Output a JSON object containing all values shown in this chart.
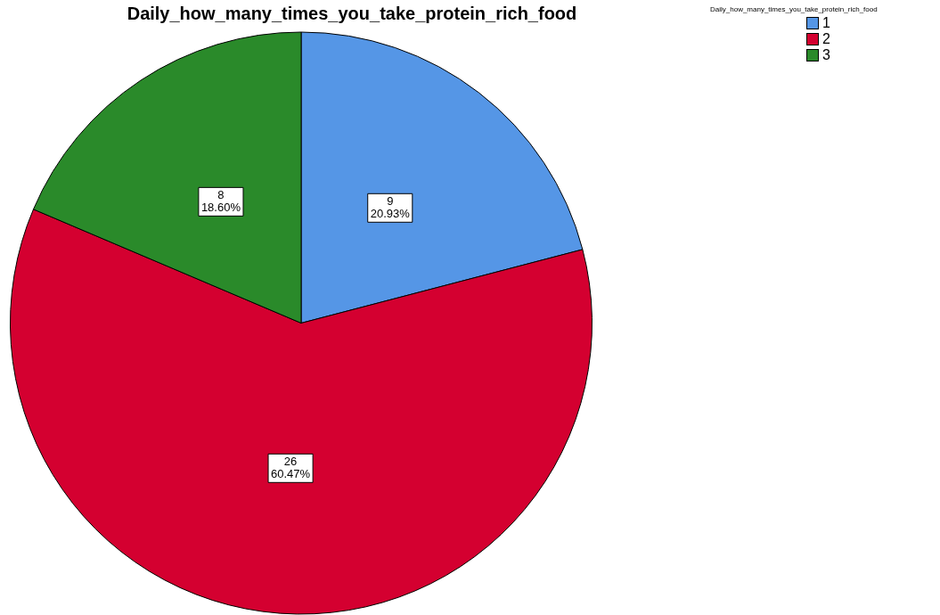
{
  "chart_data": {
    "type": "pie",
    "title": "Daily_how_many_times_you_take_protein_rich_food",
    "legend_title": "Daily_how_many_times_you_take_protein_rich_food",
    "categories": [
      "1",
      "2",
      "3"
    ],
    "values": [
      9,
      26,
      8
    ],
    "colors": [
      "#5596e6",
      "#d40030",
      "#2a8a2a"
    ],
    "value_labels": [
      "9\n20.93%",
      "26\n60.47%",
      "8\n18.60%"
    ],
    "legend": "top right"
  }
}
